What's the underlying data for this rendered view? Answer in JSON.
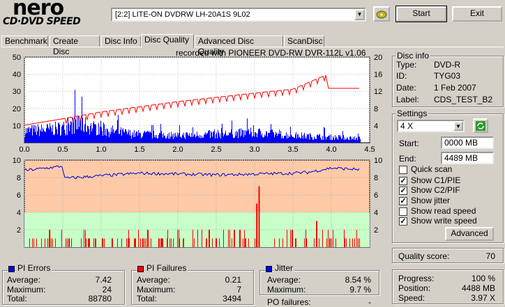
{
  "logo": {
    "line1": "nero",
    "line2": "CD·DVD SPEED"
  },
  "drive": {
    "selected": "[2:2]  LITE-ON DVDRW LH-20A1S 9L02"
  },
  "buttons": {
    "start": "Start",
    "exit": "Exit"
  },
  "tabs": [
    "Benchmark",
    "Create Disc",
    "Disc Info",
    "Disc Quality",
    "Advanced Disc Quality",
    "ScanDisc"
  ],
  "active_tab": "Disc Quality",
  "recorded_with": "recorded with PIONEER DVD-RW  DVR-112L v1.06",
  "disc_info": {
    "title": "Disc info",
    "type_label": "Type:",
    "type": "DVD-R",
    "id_label": "ID:",
    "id": "TYG03",
    "date_label": "Date:",
    "date": "1 Feb 2007",
    "label_label": "Label:",
    "label": "CDS_TEST_B2"
  },
  "settings": {
    "title": "Settings",
    "speed": "4 X",
    "start_label": "Start:",
    "start": "0000 MB",
    "end_label": "End:",
    "end": "4489 MB",
    "checks": [
      {
        "label": "Quick scan",
        "checked": false
      },
      {
        "label": "Show C1/PIE",
        "checked": true
      },
      {
        "label": "Show C2/PIF",
        "checked": true
      },
      {
        "label": "Show jitter",
        "checked": true
      },
      {
        "label": "Show read speed",
        "checked": false
      },
      {
        "label": "Show write speed",
        "checked": true
      }
    ],
    "advanced": "Advanced"
  },
  "quality": {
    "label": "Quality score:",
    "value": "70"
  },
  "progress": {
    "progress_label": "Progress:",
    "progress": "100 %",
    "position_label": "Position:",
    "position": "4488 MB",
    "speed_label": "Speed:",
    "speed": "3.97 X"
  },
  "pi_errors": {
    "title": "PI Errors",
    "color": "#0000ff",
    "average_label": "Average:",
    "average": "7.42",
    "maximum_label": "Maximum:",
    "maximum": "24",
    "total_label": "Total:",
    "total": "88780"
  },
  "pi_failures": {
    "title": "PI Failures",
    "color": "#ff0000",
    "average_label": "Average:",
    "average": "0.21",
    "maximum_label": "Maximum:",
    "maximum": "7",
    "total_label": "Total:",
    "total": "3494"
  },
  "jitter": {
    "title": "Jitter",
    "color": "#0000ff",
    "average_label": "Average:",
    "average": "8.54 %",
    "maximum_label": "Maximum:",
    "maximum": "9.7 %"
  },
  "po_failures": {
    "label": "PO failures:",
    "value": "-"
  },
  "chart_data": [
    {
      "type": "bar",
      "description": "PI errors (blue) with write speed (red line)",
      "x_ticks": [
        "0.0",
        "0.5",
        "1.0",
        "1.5",
        "2.0",
        "2.5",
        "3.0",
        "3.5",
        "4.0",
        "4.5"
      ],
      "y_left_ticks": [
        "10",
        "20",
        "30",
        "40",
        "50"
      ],
      "y_right_ticks": [
        "4",
        "8",
        "12",
        "16",
        "20"
      ],
      "xlim": [
        0,
        4.5
      ],
      "ylim_left": [
        0,
        50
      ],
      "ylim_right": [
        0,
        20
      ],
      "pi_profile": [
        {
          "x": 0,
          "y": 8
        },
        {
          "x": 0.3,
          "y": 9
        },
        {
          "x": 0.5,
          "y": 10
        },
        {
          "x": 0.7,
          "y": 13
        },
        {
          "x": 1.0,
          "y": 9
        },
        {
          "x": 1.4,
          "y": 6
        },
        {
          "x": 2.0,
          "y": 5
        },
        {
          "x": 2.6,
          "y": 6
        },
        {
          "x": 3.0,
          "y": 7
        },
        {
          "x": 3.5,
          "y": 5
        },
        {
          "x": 3.9,
          "y": 4
        },
        {
          "x": 4.4,
          "y": 3
        }
      ],
      "write_speed": [
        {
          "x": 0,
          "y": 4.1
        },
        {
          "x": 0.5,
          "y": 5.6
        },
        {
          "x": 1.0,
          "y": 7.2
        },
        {
          "x": 1.5,
          "y": 8.4
        },
        {
          "x": 2.0,
          "y": 9.6
        },
        {
          "x": 2.5,
          "y": 10.6
        },
        {
          "x": 3.0,
          "y": 11.6
        },
        {
          "x": 3.5,
          "y": 12.5
        },
        {
          "x": 3.94,
          "y": 15.9
        },
        {
          "x": 3.95,
          "y": 12.7
        },
        {
          "x": 4.35,
          "y": 12.7
        }
      ]
    },
    {
      "type": "bar",
      "description": "PI failures (red) with jitter (blue line)",
      "x_ticks": [
        "0.0",
        "0.5",
        "1.0",
        "1.5",
        "2.0",
        "2.5",
        "3.0",
        "3.5",
        "4.0",
        "4.5"
      ],
      "y_left_ticks": [
        "2",
        "4",
        "6",
        "8",
        "10"
      ],
      "y_right_ticks": [
        "2",
        "4",
        "6",
        "8",
        "10"
      ],
      "xlim": [
        0,
        4.5
      ],
      "ylim": [
        0,
        10
      ],
      "jitter": [
        {
          "x": 0,
          "y": 8.8
        },
        {
          "x": 0.5,
          "y": 9.3
        },
        {
          "x": 0.52,
          "y": 7.9
        },
        {
          "x": 1.0,
          "y": 8.2
        },
        {
          "x": 1.5,
          "y": 8.5
        },
        {
          "x": 2.0,
          "y": 8.4
        },
        {
          "x": 2.5,
          "y": 8.3
        },
        {
          "x": 3.0,
          "y": 8.4
        },
        {
          "x": 3.5,
          "y": 8.5
        },
        {
          "x": 3.7,
          "y": 8.6
        },
        {
          "x": 4.0,
          "y": 9.1
        },
        {
          "x": 4.4,
          "y": 8.9
        }
      ],
      "pif_peaks": [
        {
          "x": 3.02,
          "y": 5
        },
        {
          "x": 3.05,
          "y": 7
        },
        {
          "x": 0.32,
          "y": 2
        },
        {
          "x": 1.6,
          "y": 2
        },
        {
          "x": 2.4,
          "y": 2
        },
        {
          "x": 3.8,
          "y": 3
        }
      ],
      "bands": {
        "high_color": "#ffcaa8",
        "low_color": "#c8ffc8",
        "low_max": 4
      }
    }
  ]
}
